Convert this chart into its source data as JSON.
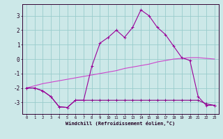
{
  "xlabel": "Windchill (Refroidissement éolien,°C)",
  "x_values": [
    0,
    1,
    2,
    3,
    4,
    5,
    6,
    7,
    8,
    9,
    10,
    11,
    12,
    13,
    14,
    15,
    16,
    17,
    18,
    19,
    20,
    21,
    22,
    23
  ],
  "series1": [
    -2.0,
    -2.0,
    -2.2,
    -2.6,
    -3.3,
    -3.35,
    -2.85,
    -2.85,
    -2.85,
    -2.85,
    -2.85,
    -2.85,
    -2.85,
    -2.85,
    -2.85,
    -2.85,
    -2.85,
    -2.85,
    -2.85,
    -2.85,
    -2.85,
    -2.85,
    -3.1,
    -3.2
  ],
  "series2": [
    -2.0,
    -1.85,
    -1.7,
    -1.6,
    -1.5,
    -1.4,
    -1.3,
    -1.2,
    -1.1,
    -1.0,
    -0.9,
    -0.8,
    -0.65,
    -0.55,
    -0.45,
    -0.35,
    -0.2,
    -0.1,
    0.0,
    0.05,
    0.1,
    0.1,
    0.05,
    0.0
  ],
  "series3": [
    -2.0,
    -2.0,
    -2.2,
    -2.6,
    -3.3,
    -3.35,
    -2.85,
    -2.85,
    -0.5,
    1.1,
    1.5,
    2.0,
    1.5,
    2.2,
    3.4,
    3.0,
    2.2,
    1.7,
    0.9,
    0.1,
    -0.1,
    -2.6,
    -3.2,
    -3.2
  ],
  "line1_color": "#880088",
  "line2_color": "#cc44cc",
  "line3_color": "#990099",
  "bg_color": "#cce8e8",
  "grid_color": "#99cccc",
  "axis_color": "#330033",
  "tick_label_color": "#220022",
  "ylim": [
    -3.8,
    3.8
  ],
  "yticks": [
    -3,
    -2,
    -1,
    0,
    1,
    2,
    3
  ],
  "xlim": [
    -0.5,
    23.5
  ],
  "marker": "+"
}
